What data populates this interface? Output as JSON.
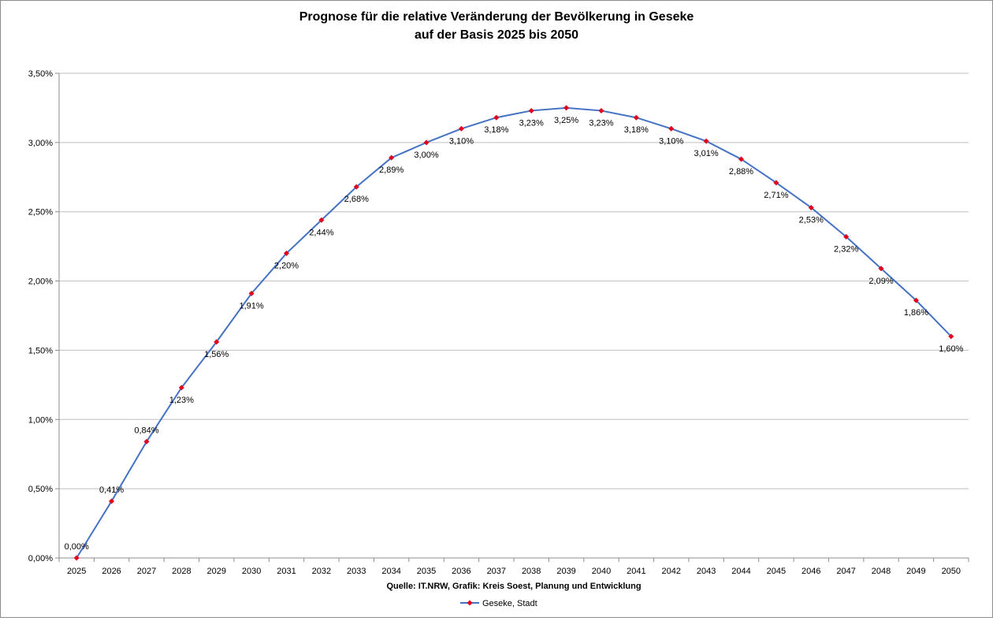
{
  "chart_data": {
    "type": "line",
    "title": "Prognose für die relative Veränderung der Bevölkerung in Geseke",
    "subtitle": "auf der Basis 2025 bis 2050",
    "source": "Quelle: IT.NRW, Grafik: Kreis Soest, Planung und Entwicklung",
    "xlabel": "",
    "ylabel": "",
    "ylim": [
      0,
      3.5
    ],
    "ytick_values": [
      0,
      0.5,
      1.0,
      1.5,
      2.0,
      2.5,
      3.0,
      3.5
    ],
    "ytick_labels": [
      "0,00%",
      "0,50%",
      "1,00%",
      "1,50%",
      "2,00%",
      "2,50%",
      "3,00%",
      "3,50%"
    ],
    "categories": [
      "2025",
      "2026",
      "2027",
      "2028",
      "2029",
      "2030",
      "2031",
      "2032",
      "2033",
      "2034",
      "2035",
      "2036",
      "2037",
      "2038",
      "2039",
      "2040",
      "2041",
      "2042",
      "2043",
      "2044",
      "2045",
      "2046",
      "2047",
      "2048",
      "2049",
      "2050"
    ],
    "series": [
      {
        "name": "Geseke, Stadt",
        "values": [
          0.0,
          0.41,
          0.84,
          1.23,
          1.56,
          1.91,
          2.2,
          2.44,
          2.68,
          2.89,
          3.0,
          3.1,
          3.18,
          3.23,
          3.25,
          3.23,
          3.18,
          3.1,
          3.01,
          2.88,
          2.71,
          2.53,
          2.32,
          2.09,
          1.86,
          1.6
        ],
        "labels": [
          "0,00%",
          "0,41%",
          "0,84%",
          "1,23%",
          "1,56%",
          "1,91%",
          "2,20%",
          "2,44%",
          "2,68%",
          "2,89%",
          "3,00%",
          "3,10%",
          "3,18%",
          "3,23%",
          "3,25%",
          "3,23%",
          "3,18%",
          "3,10%",
          "3,01%",
          "2,88%",
          "2,71%",
          "2,53%",
          "2,32%",
          "2,09%",
          "1,86%",
          "1,60%"
        ],
        "line_color": "#4472c4",
        "marker_color": "#e3001b"
      }
    ],
    "grid": true,
    "legend": "bottom-center"
  }
}
